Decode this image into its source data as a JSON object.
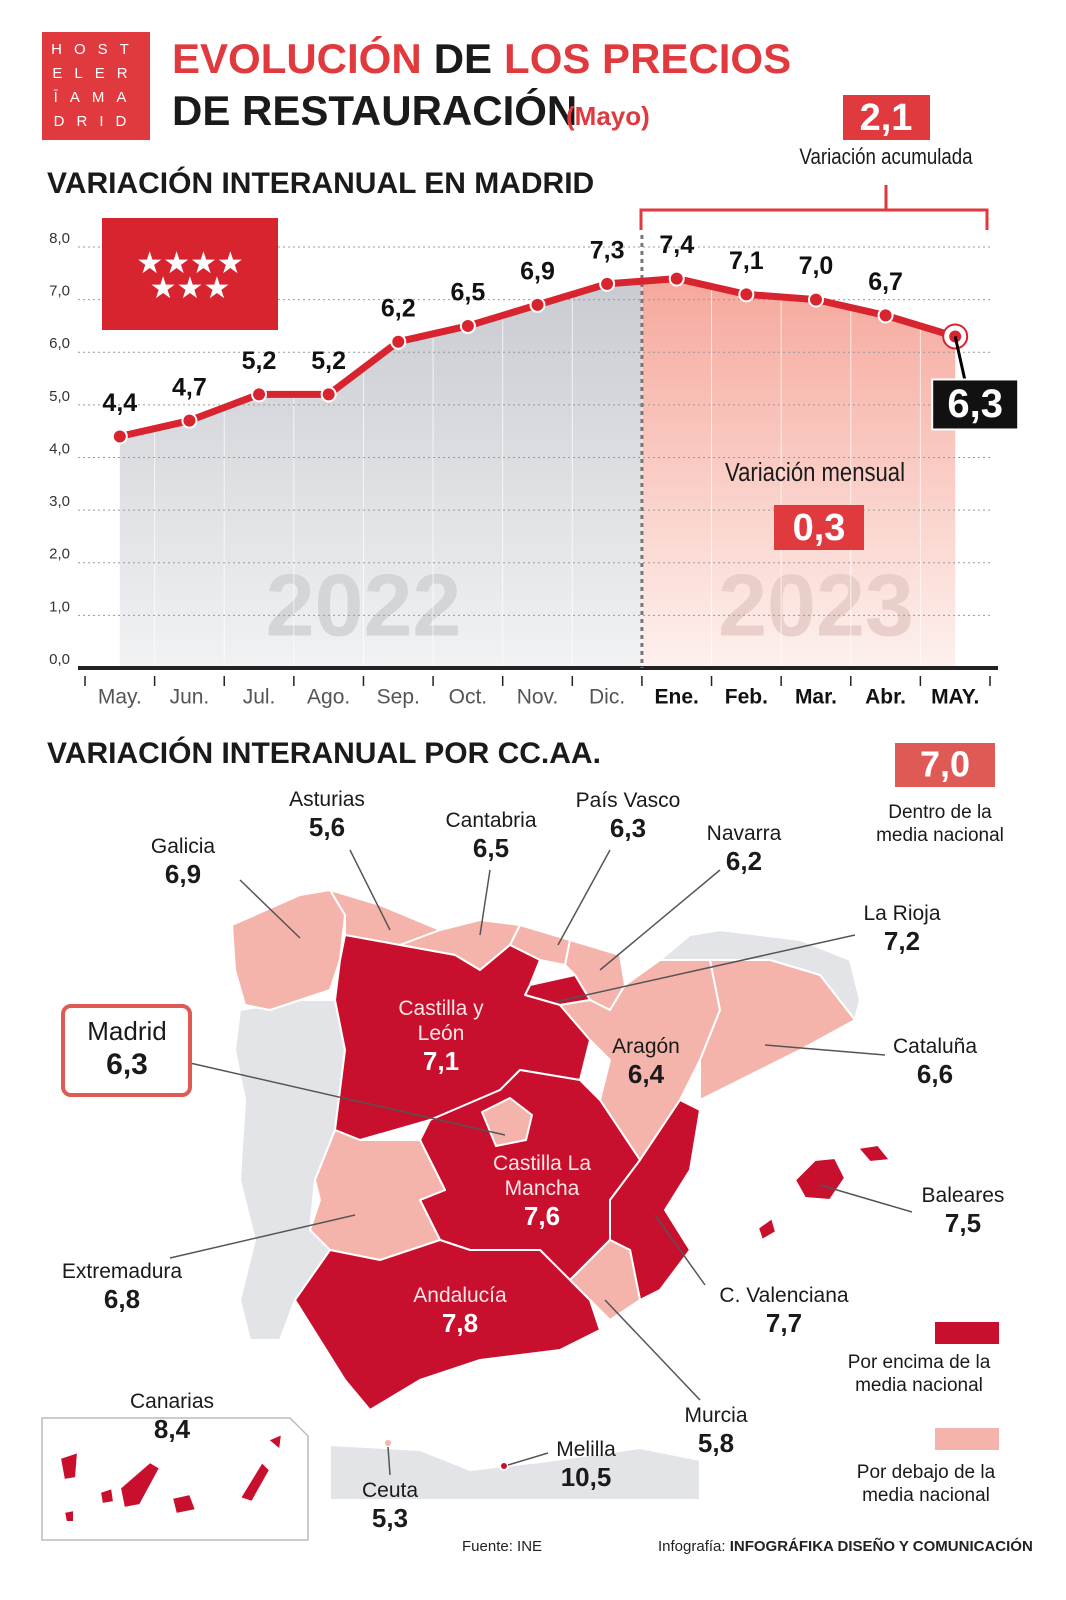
{
  "logo": [
    "HOST",
    "ELER",
    "ĪAMA",
    "DRID"
  ],
  "header": {
    "line1": [
      {
        "text": "EVOLUCIÓN",
        "color": "#e03a3e"
      },
      {
        "text": "DE",
        "color": "#1a1a1a"
      },
      {
        "text": "LOS PRECIOS",
        "color": "#e03a3e"
      }
    ],
    "line2": "DE RESTAURACIÓN",
    "note": "(Mayo)"
  },
  "chart_data": {
    "type": "line",
    "title": "VARIACIÓN INTERANUAL EN MADRID",
    "categories": [
      "May.",
      "Jun.",
      "Jul.",
      "Ago.",
      "Sep.",
      "Oct.",
      "Nov.",
      "Dic.",
      "Ene.",
      "Feb.",
      "Mar.",
      "Abr.",
      "MAY."
    ],
    "values": [
      4.4,
      4.7,
      5.2,
      5.2,
      6.2,
      6.5,
      6.9,
      7.3,
      7.4,
      7.1,
      7.0,
      6.7,
      6.3
    ],
    "value_labels": [
      "4,4",
      "4,7",
      "5,2",
      "5,2",
      "6,2",
      "6,5",
      "6,9",
      "7,3",
      "7,4",
      "7,1",
      "7,0",
      "6,7",
      "6,3"
    ],
    "color": "#d7242f",
    "ylim": [
      0,
      8
    ],
    "yticks": [
      {
        "value": 0,
        "label": "0,0"
      },
      {
        "value": 1,
        "label": "1,0"
      },
      {
        "value": 2,
        "label": "2,0"
      },
      {
        "value": 3,
        "label": "3,0"
      },
      {
        "value": 4,
        "label": "4,0"
      },
      {
        "value": 5,
        "label": "5,0"
      },
      {
        "value": 6,
        "label": "6,0"
      },
      {
        "value": 7,
        "label": "7,0"
      },
      {
        "value": 8,
        "label": "8,0"
      }
    ],
    "grid": true,
    "periods": [
      {
        "label": "2022",
        "from": "May.",
        "to": "Dic."
      },
      {
        "label": "2023",
        "from": "Ene.",
        "to": "MAY."
      }
    ],
    "cumulative": {
      "label": "2,1",
      "text": "Variación acumulada"
    },
    "monthly": {
      "label": "0,3",
      "text": "Variación mensual"
    }
  },
  "map": {
    "title": "VARIACIÓN INTERANUAL POR CC.AA.",
    "national": {
      "label": "7,0",
      "text": "Dentro de la media nacional"
    },
    "regions": [
      {
        "name": "Galicia",
        "value": "6,9",
        "color": "#f4b4ab"
      },
      {
        "name": "Asturias",
        "value": "5,6",
        "color": "#f4b4ab"
      },
      {
        "name": "Cantabria",
        "value": "6,5",
        "color": "#f4b4ab"
      },
      {
        "name": "País Vasco",
        "value": "6,3",
        "color": "#f4b4ab"
      },
      {
        "name": "Navarra",
        "value": "6,2",
        "color": "#f4b4ab"
      },
      {
        "name": "La Rioja",
        "value": "7,2",
        "color": "#c8102e"
      },
      {
        "name": "Castilla y León",
        "value": "7,1",
        "color": "#c8102e"
      },
      {
        "name": "Madrid",
        "value": "6,3",
        "color": "#f4b4ab"
      },
      {
        "name": "Aragón",
        "value": "6,4",
        "color": "#f4b4ab"
      },
      {
        "name": "Cataluña",
        "value": "6,6",
        "color": "#f4b4ab"
      },
      {
        "name": "Castilla La Mancha",
        "value": "7,6",
        "color": "#c8102e"
      },
      {
        "name": "Extremadura",
        "value": "6,8",
        "color": "#f4b4ab"
      },
      {
        "name": "Andalucía",
        "value": "7,8",
        "color": "#c8102e"
      },
      {
        "name": "Baleares",
        "value": "7,5",
        "color": "#c8102e"
      },
      {
        "name": "C. Valenciana",
        "value": "7,7",
        "color": "#c8102e"
      },
      {
        "name": "Murcia",
        "value": "5,8",
        "color": "#f4b4ab"
      },
      {
        "name": "Canarias",
        "value": "8,4",
        "color": "#c8102e"
      },
      {
        "name": "Ceuta",
        "value": "5,3",
        "color": "#f4b4ab"
      },
      {
        "name": "Melilla",
        "value": "10,5",
        "color": "#c8102e"
      }
    ],
    "legend": [
      {
        "color": "#c8102e",
        "label": "Por encima de la media nacional"
      },
      {
        "color": "#f4b4ab",
        "label": "Por debajo de la media nacional"
      }
    ]
  },
  "footer": {
    "source": "Fuente: INE",
    "credit_prefix": "Infografía:",
    "credit": "INFOGRÁFIKA DISEÑO Y COMUNICACIÓN"
  }
}
